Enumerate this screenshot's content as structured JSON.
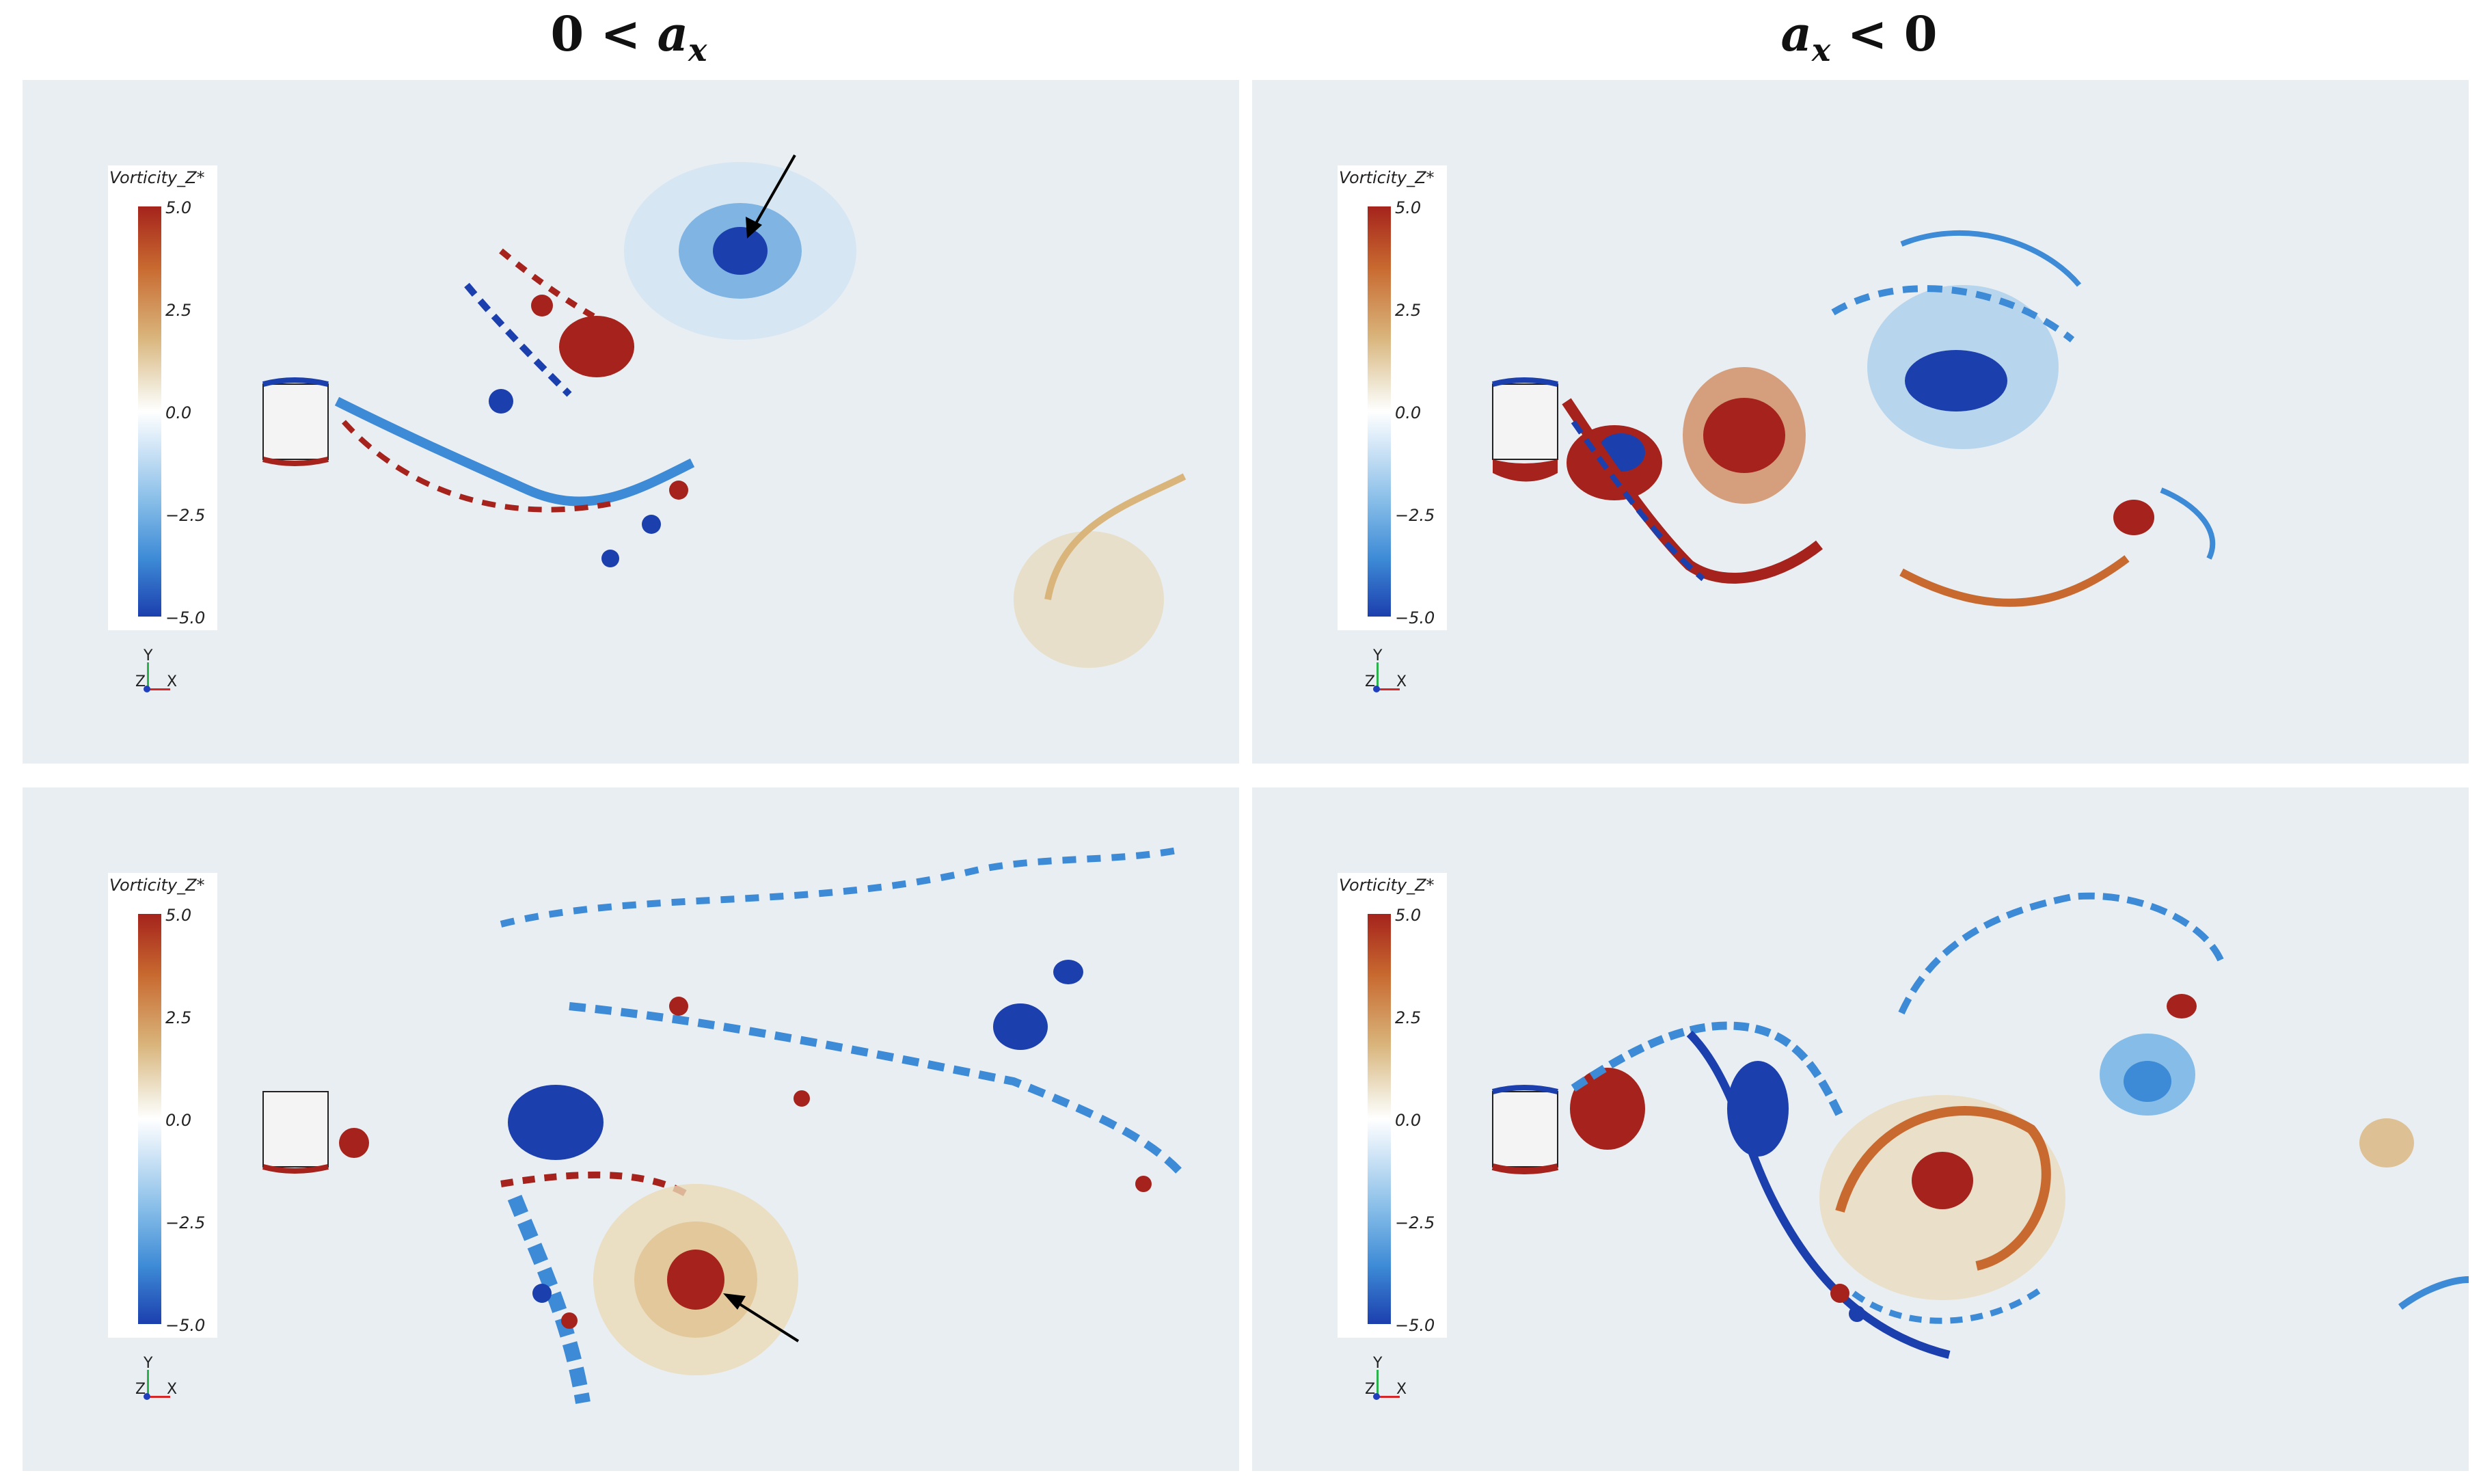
{
  "columns": [
    {
      "title_num": "0",
      "title_op": "<",
      "title_var": "a",
      "title_sub": "x",
      "title_text": ""
    },
    {
      "title_num": "",
      "title_op": "<",
      "title_var": "a",
      "title_sub": "x",
      "title_text": "0"
    }
  ],
  "legend": {
    "title": "Vorticity_Z*",
    "ticks": [
      "5.0",
      "2.5",
      "0.0",
      "−2.5",
      "−5.0"
    ]
  },
  "axes": {
    "y": "Y",
    "z": "Z",
    "x": "X"
  },
  "colors": {
    "positive": "#a5231c",
    "negative": "#1c3fae",
    "background": "#e9eef2"
  },
  "icons": [
    "arrow-icon"
  ]
}
